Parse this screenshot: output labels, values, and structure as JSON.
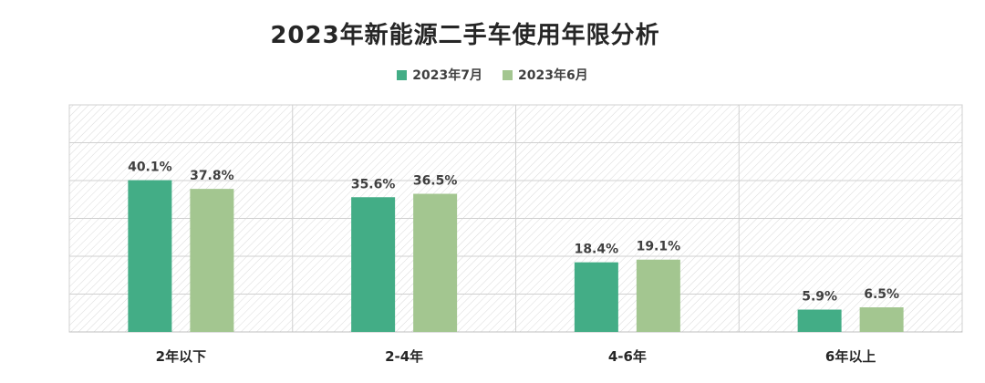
{
  "chart_data": {
    "type": "bar",
    "title": "2023年新能源二手车使用年限分析",
    "categories": [
      "2年以下",
      "2-4年",
      "4-6年",
      "6年以上"
    ],
    "series": [
      {
        "name": "2023年7月",
        "color": "#43ad86",
        "values": [
          40.1,
          35.6,
          18.4,
          5.9
        ],
        "labels": [
          "40.1%",
          "35.6%",
          "18.4%",
          "5.9%"
        ]
      },
      {
        "name": "2023年6月",
        "color": "#a3c690",
        "values": [
          37.8,
          36.5,
          19.1,
          6.5
        ],
        "labels": [
          "37.8%",
          "36.5%",
          "19.1%",
          "6.5%"
        ]
      }
    ],
    "ylim": [
      0,
      60
    ],
    "grid": true,
    "legend_position": "top-center",
    "xlabel": "",
    "ylabel": ""
  }
}
